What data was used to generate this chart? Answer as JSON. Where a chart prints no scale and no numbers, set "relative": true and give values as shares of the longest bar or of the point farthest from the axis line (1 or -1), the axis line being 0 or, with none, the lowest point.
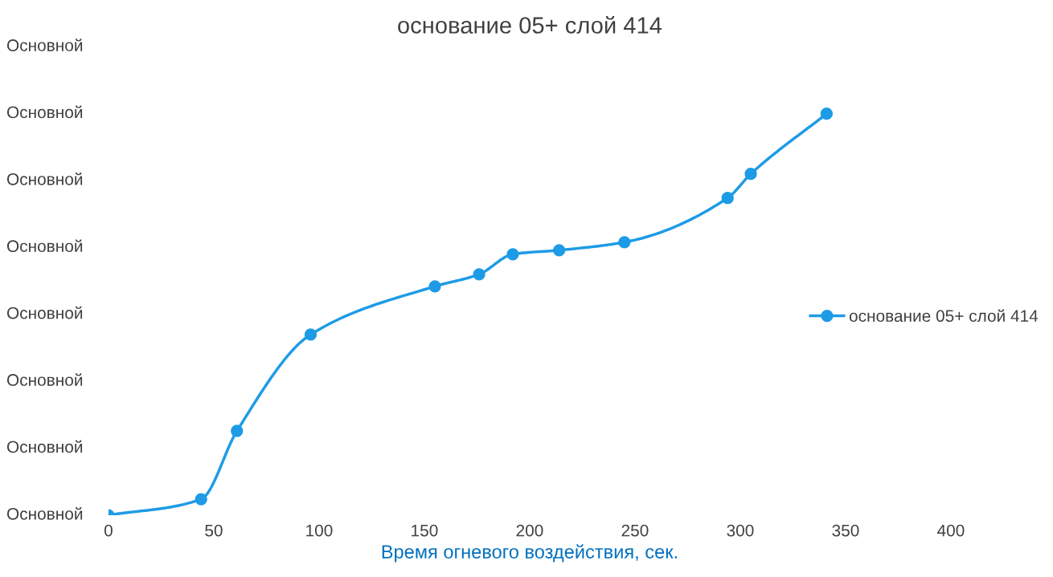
{
  "chart_data": {
    "type": "line",
    "title": "основание 05+ слой 414",
    "xlabel": "Время огневого воздействия, сек.",
    "relative": true,
    "x": [
      0,
      44,
      61,
      96,
      155,
      176,
      192,
      214,
      245,
      294,
      305,
      341
    ],
    "series": [
      {
        "name": "основание 05+ слой 414",
        "color": "#1e9be6",
        "values": [
          0,
          0.04,
          0.21,
          0.45,
          0.57,
          0.6,
          0.65,
          0.66,
          0.68,
          0.79,
          0.85,
          1.0
        ]
      }
    ],
    "xlim": [
      0,
      400
    ],
    "xticks": [
      0,
      50,
      100,
      150,
      200,
      250,
      300,
      350,
      400
    ],
    "annotations": [
      "Основной",
      "Основной",
      "Основной",
      "Основной",
      "Основной",
      "Основной",
      "Основной",
      "Основной"
    ],
    "grid": false,
    "legend": "right",
    "marker": "circle",
    "line_style": "solid"
  }
}
